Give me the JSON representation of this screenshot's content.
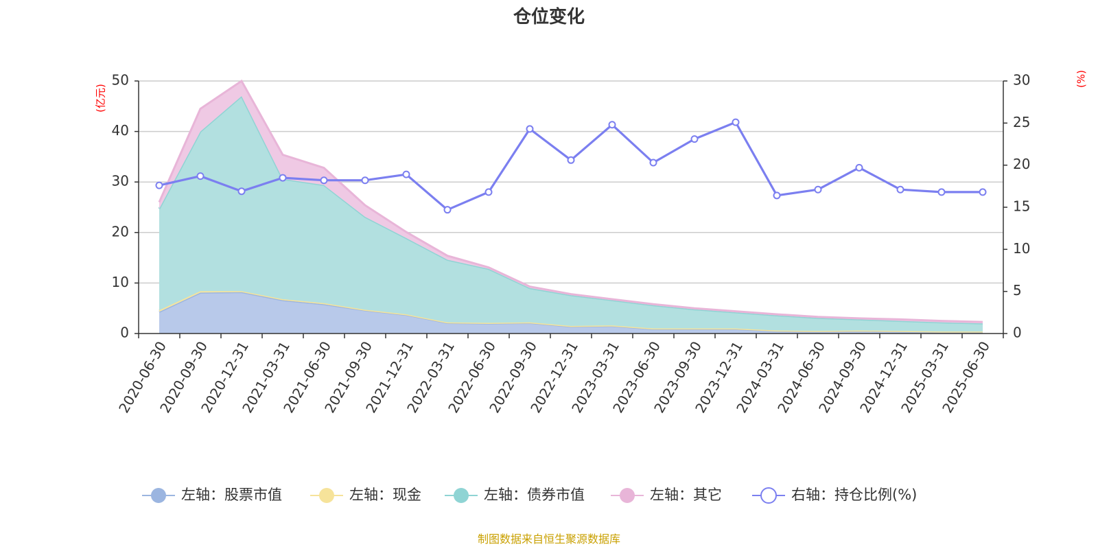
{
  "chart_data": {
    "type": "area",
    "title": "仓位变化",
    "left_unit": "(亿元)",
    "right_unit": "(%)",
    "left_ylim": [
      0,
      50
    ],
    "left_ticks": [
      "0",
      "10",
      "20",
      "30",
      "40",
      "50"
    ],
    "right_ylim": [
      0,
      30
    ],
    "right_ticks": [
      "0",
      "5",
      "10",
      "15",
      "20",
      "25",
      "30"
    ],
    "categories": [
      "2020-06-30",
      "2020-09-30",
      "2020-12-31",
      "2021-03-31",
      "2021-06-30",
      "2021-09-30",
      "2021-12-31",
      "2022-03-31",
      "2022-06-30",
      "2022-09-30",
      "2022-12-31",
      "2023-03-31",
      "2023-06-30",
      "2023-09-30",
      "2023-12-31",
      "2024-03-31",
      "2024-06-30",
      "2024-09-30",
      "2024-12-31",
      "2025-03-31",
      "2025-06-30"
    ],
    "stack_series": [
      {
        "name": "左轴：股票市值",
        "color": "#9bb5e0",
        "fill": "#b8c9ea",
        "values": [
          4.3,
          8.1,
          8.2,
          6.6,
          5.8,
          4.6,
          3.7,
          2.1,
          2.0,
          2.1,
          1.4,
          1.5,
          0.9,
          0.9,
          0.9,
          0.5,
          0.4,
          0.5,
          0.4,
          0.3,
          0.3
        ]
      },
      {
        "name": "左轴：现金",
        "color": "#f6e39a",
        "fill": "#f8eaa8",
        "values": [
          0.3,
          0.3,
          0.2,
          0.2,
          0.2,
          0.1,
          0.1,
          0.1,
          0.1,
          0.1,
          0.1,
          0.1,
          0.1,
          0.1,
          0.1,
          0.1,
          0.1,
          0.1,
          0.1,
          0.1,
          0.1
        ]
      },
      {
        "name": "左轴：债券市值",
        "color": "#8fd4d4",
        "fill": "#b2e0e0",
        "values": [
          20.1,
          31.6,
          38.6,
          23.8,
          23.4,
          18.4,
          15.1,
          12.4,
          10.7,
          6.8,
          6.1,
          5.0,
          4.6,
          3.8,
          3.2,
          3.0,
          2.6,
          2.2,
          2.0,
          1.8,
          1.6
        ]
      },
      {
        "name": "左轴：其它",
        "color": "#e8b5d8",
        "fill": "#efc9e4",
        "values": [
          1.3,
          4.5,
          3.0,
          4.8,
          3.4,
          2.3,
          1.2,
          0.8,
          0.3,
          0.3,
          0.2,
          0.2,
          0.2,
          0.2,
          0.2,
          0.2,
          0.2,
          0.2,
          0.3,
          0.3,
          0.3
        ]
      }
    ],
    "line_series": {
      "name": "右轴：持仓比例(%)",
      "color": "#7b7ff0",
      "values": [
        17.6,
        18.7,
        16.9,
        18.5,
        18.2,
        18.2,
        18.9,
        14.7,
        16.8,
        24.3,
        20.6,
        24.8,
        20.3,
        23.1,
        25.1,
        16.4,
        17.1,
        19.7,
        17.1,
        16.8,
        16.8
      ]
    },
    "legend_position": "bottom",
    "grid": true
  },
  "source_note": "制图数据来自恒生聚源数据库"
}
